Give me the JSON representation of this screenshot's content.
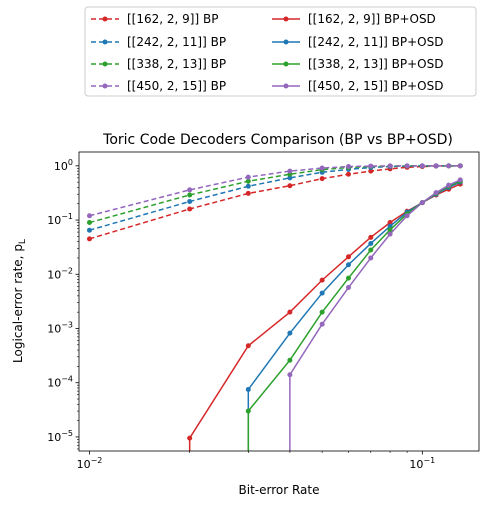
{
  "chart_data": {
    "type": "line",
    "title": "Toric Code Decoders Comparison (BP vs BP+OSD)",
    "xlabel": "Bit-error Rate",
    "ylabel": "Logical-error rate, p",
    "ylabel_sub": "L",
    "xscale": "log",
    "yscale": "log",
    "xlim": [
      0.0093,
      0.148
    ],
    "ylim": [
      5.5e-06,
      1.8
    ],
    "legend_placement": "top-center, above plot, 2 columns",
    "grid": false,
    "x_ticks": [
      {
        "value": 0.01,
        "base": "10",
        "exp": "−2"
      },
      {
        "value": 0.1,
        "base": "10",
        "exp": "−1"
      }
    ],
    "y_ticks": [
      {
        "value": 1e-05,
        "base": "10",
        "exp": "−5"
      },
      {
        "value": 0.0001,
        "base": "10",
        "exp": "−4"
      },
      {
        "value": 0.001,
        "base": "10",
        "exp": "−3"
      },
      {
        "value": 0.01,
        "base": "10",
        "exp": "−2"
      },
      {
        "value": 0.1,
        "base": "10",
        "exp": "−1"
      },
      {
        "value": 1,
        "base": "10",
        "exp": "0"
      }
    ],
    "series": [
      {
        "name": "[[162, 2, 9]] BP",
        "color": "#d62728",
        "dash": true,
        "x": [
          0.01,
          0.02,
          0.03,
          0.04,
          0.05,
          0.06,
          0.07,
          0.08,
          0.09,
          0.1,
          0.11,
          0.12,
          0.13
        ],
        "y": [
          0.045,
          0.16,
          0.31,
          0.43,
          0.58,
          0.7,
          0.8,
          0.88,
          0.94,
          0.97,
          0.99,
          1.0,
          1.0
        ]
      },
      {
        "name": "[[242, 2, 11]] BP",
        "color": "#1f77b4",
        "dash": true,
        "x": [
          0.01,
          0.02,
          0.03,
          0.04,
          0.05,
          0.06,
          0.07,
          0.08,
          0.09,
          0.1,
          0.11,
          0.12,
          0.13
        ],
        "y": [
          0.065,
          0.22,
          0.42,
          0.6,
          0.76,
          0.86,
          0.93,
          0.97,
          0.99,
          1.0,
          1.0,
          1.0,
          1.0
        ]
      },
      {
        "name": "[[338, 2, 13]] BP",
        "color": "#2ca02c",
        "dash": true,
        "x": [
          0.01,
          0.02,
          0.03,
          0.04,
          0.05,
          0.06,
          0.07,
          0.08,
          0.09,
          0.1,
          0.11,
          0.12,
          0.13
        ],
        "y": [
          0.09,
          0.29,
          0.52,
          0.7,
          0.85,
          0.93,
          0.97,
          0.99,
          1.0,
          1.0,
          1.0,
          1.0,
          1.0
        ]
      },
      {
        "name": "[[450, 2, 15]] BP",
        "color": "#9467bd",
        "dash": true,
        "x": [
          0.01,
          0.02,
          0.03,
          0.04,
          0.05,
          0.06,
          0.07,
          0.08,
          0.09,
          0.1,
          0.11,
          0.12,
          0.13
        ],
        "y": [
          0.12,
          0.36,
          0.62,
          0.8,
          0.91,
          0.97,
          0.99,
          1.0,
          1.0,
          1.0,
          1.0,
          1.0,
          1.0
        ]
      },
      {
        "name": "[[162, 2, 9]] BP+OSD",
        "color": "#d62728",
        "dash": false,
        "x": [
          0.02,
          0.03,
          0.04,
          0.05,
          0.06,
          0.07,
          0.08,
          0.09,
          0.1,
          0.11,
          0.12,
          0.13
        ],
        "y": [
          9.5e-06,
          0.00048,
          0.002,
          0.0078,
          0.021,
          0.048,
          0.09,
          0.145,
          0.21,
          0.29,
          0.37,
          0.46
        ],
        "drop_from_x": 0.02
      },
      {
        "name": "[[242, 2, 11]] BP+OSD",
        "color": "#1f77b4",
        "dash": false,
        "x": [
          0.03,
          0.04,
          0.05,
          0.06,
          0.07,
          0.08,
          0.09,
          0.1,
          0.11,
          0.12,
          0.13
        ],
        "y": [
          7.5e-05,
          0.00082,
          0.0045,
          0.015,
          0.037,
          0.077,
          0.14,
          0.21,
          0.3,
          0.4,
          0.5
        ],
        "drop_from_x": 0.03
      },
      {
        "name": "[[338, 2, 13]] BP+OSD",
        "color": "#2ca02c",
        "dash": false,
        "x": [
          0.03,
          0.04,
          0.05,
          0.06,
          0.07,
          0.08,
          0.09,
          0.1,
          0.11,
          0.12,
          0.13
        ],
        "y": [
          3e-05,
          0.00026,
          0.002,
          0.0085,
          0.028,
          0.066,
          0.13,
          0.21,
          0.31,
          0.42,
          0.52
        ],
        "drop_from_x": 0.03
      },
      {
        "name": "[[450, 2, 15]] BP+OSD",
        "color": "#9467bd",
        "dash": false,
        "x": [
          0.04,
          0.05,
          0.06,
          0.07,
          0.08,
          0.09,
          0.1,
          0.11,
          0.12,
          0.13
        ],
        "y": [
          0.00014,
          0.0012,
          0.0057,
          0.02,
          0.055,
          0.12,
          0.21,
          0.32,
          0.44,
          0.55
        ],
        "drop_from_x": 0.04
      }
    ]
  }
}
